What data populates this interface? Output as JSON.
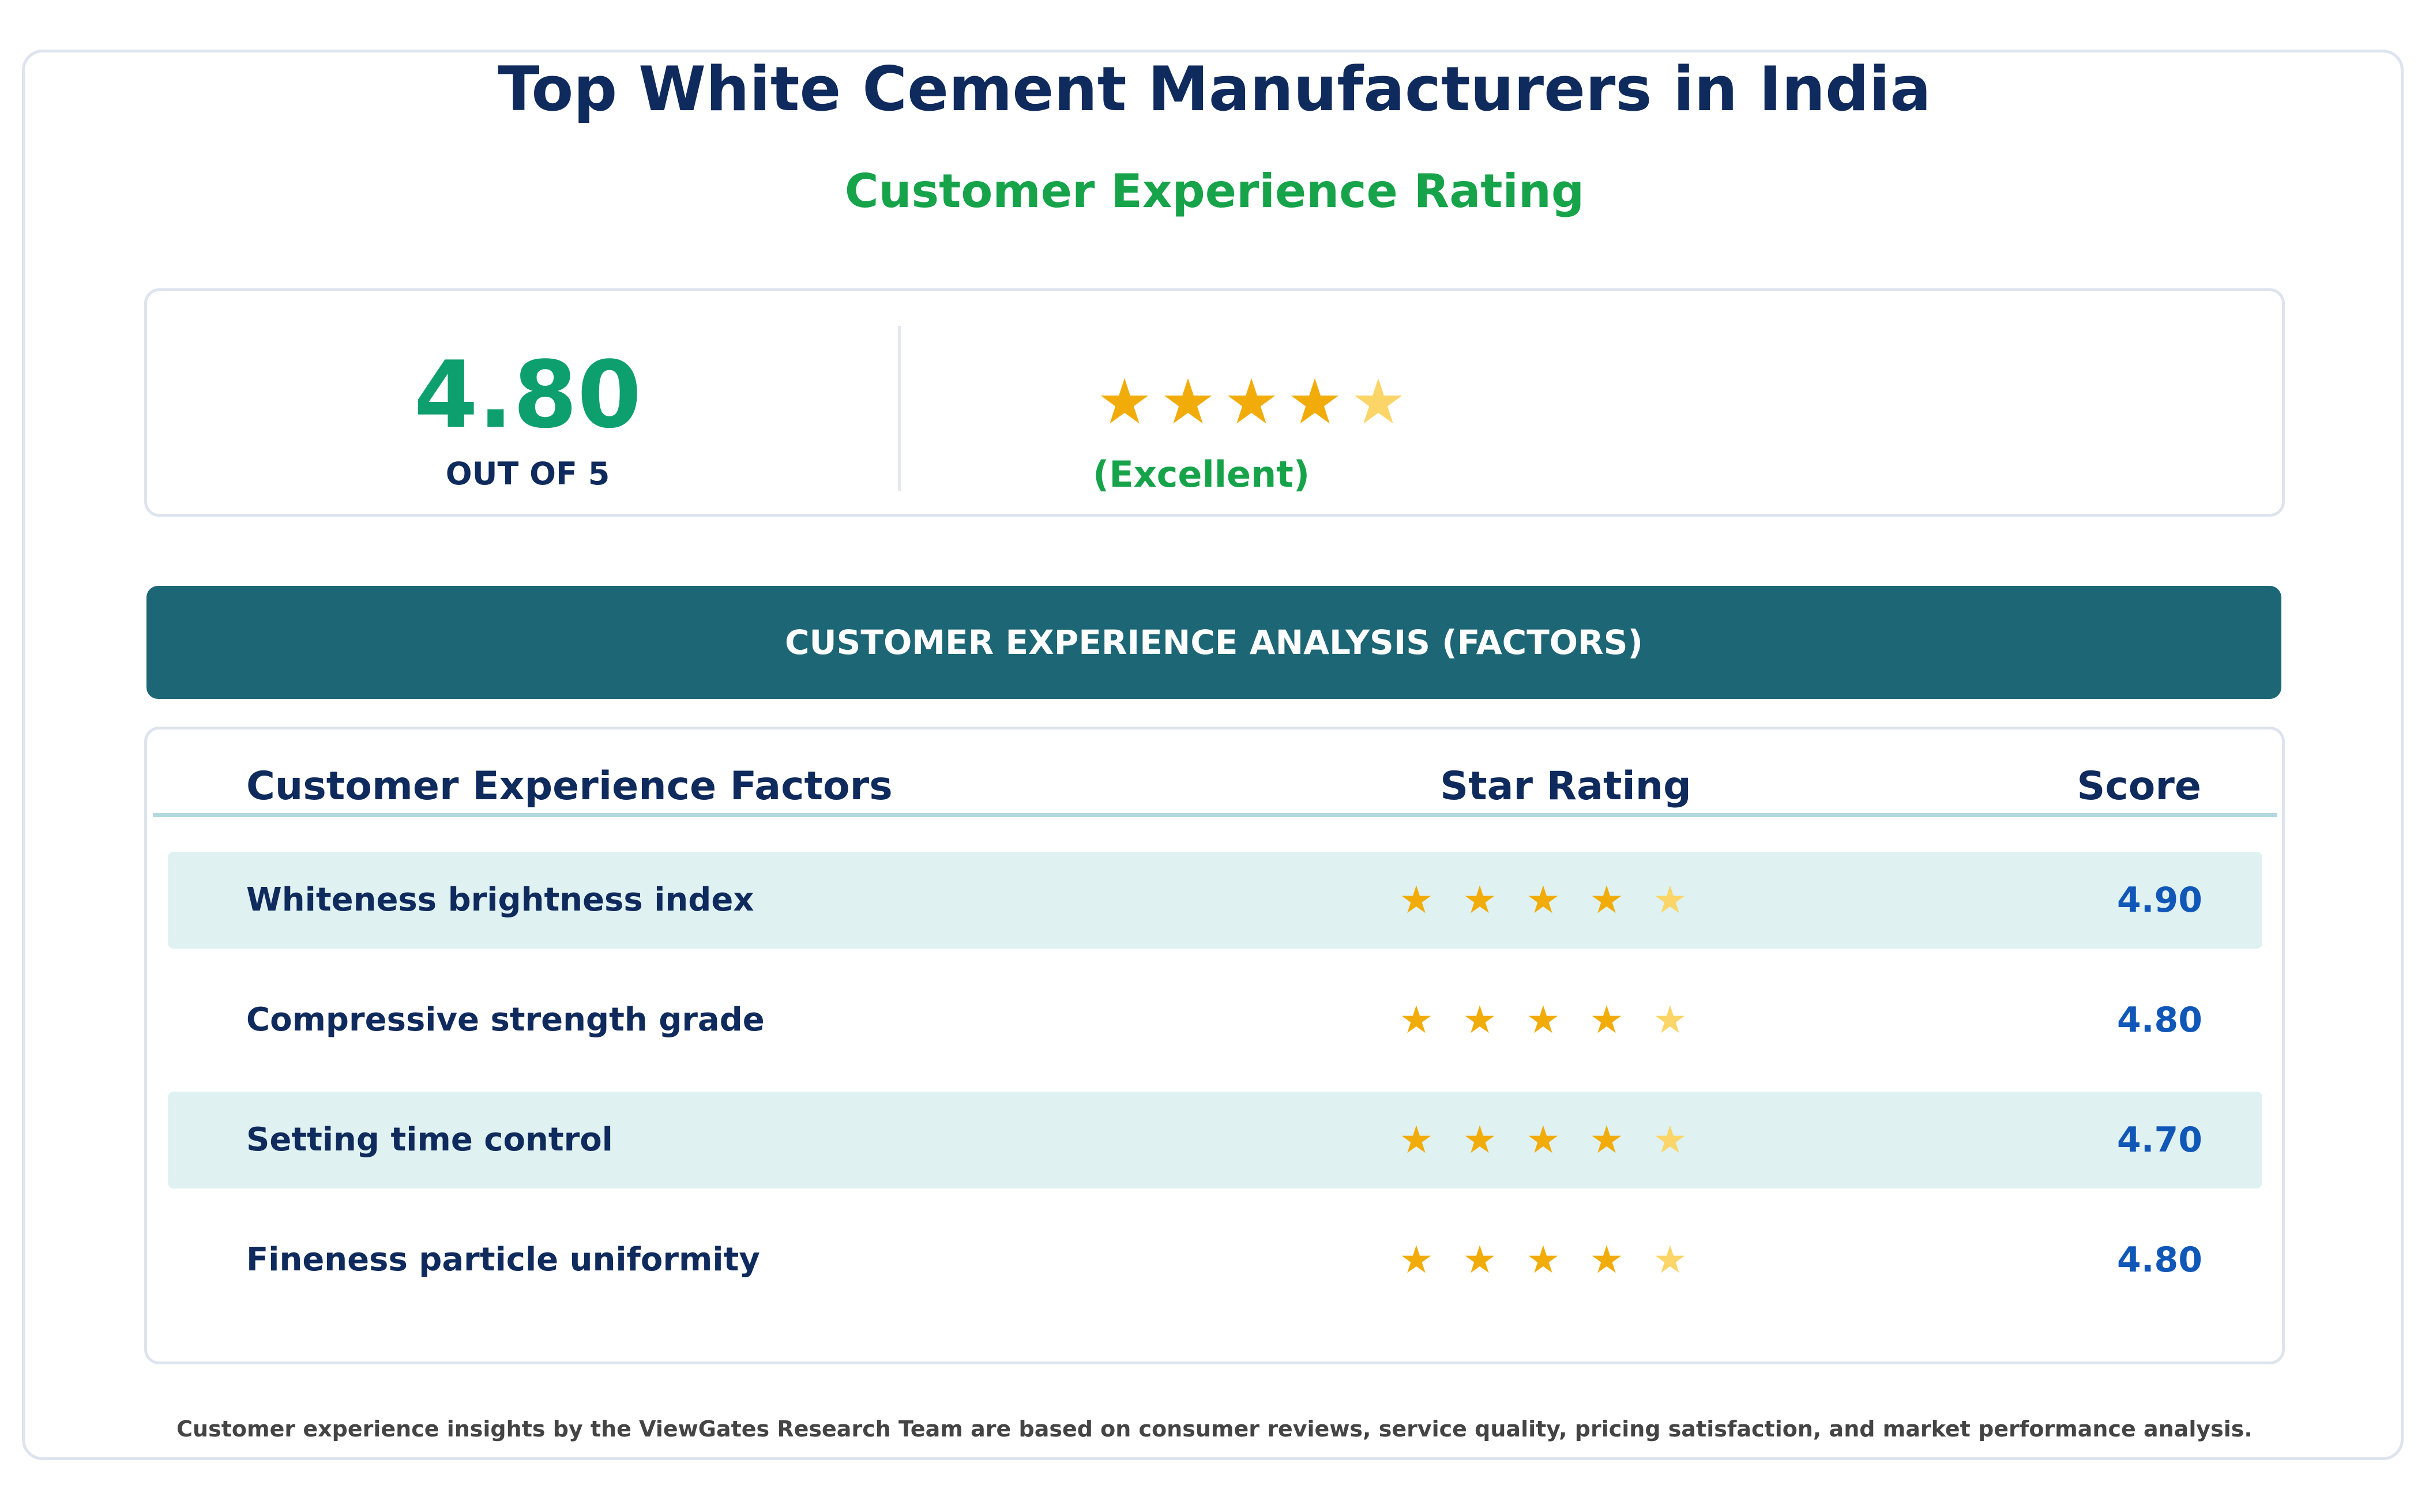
{
  "header": {
    "title": "Top White Cement Manufacturers in India",
    "subtitle": "Customer Experience Rating"
  },
  "summary": {
    "score": "4.80",
    "out_of": "OUT OF 5",
    "stars": 4.5,
    "star_icons": [
      "★",
      "★",
      "★",
      "★",
      "★"
    ],
    "label": "(Excellent)"
  },
  "banner": {
    "label": "CUSTOMER EXPERIENCE ANALYSIS (FACTORS)"
  },
  "table": {
    "columns": [
      "Customer Experience Factors",
      "Star Rating",
      "Score"
    ],
    "rows": [
      {
        "factor": "Whiteness brightness index",
        "stars": 4.5,
        "score": "4.90",
        "star_icons": [
          "★",
          "★",
          "★",
          "★",
          "★"
        ]
      },
      {
        "factor": "Compressive strength grade",
        "stars": 4.5,
        "score": "4.80",
        "star_icons": [
          "★",
          "★",
          "★",
          "★",
          "★"
        ]
      },
      {
        "factor": "Setting time control",
        "stars": 4.5,
        "score": "4.70",
        "star_icons": [
          "★",
          "★",
          "★",
          "★",
          "★"
        ]
      },
      {
        "factor": "Fineness particle uniformity",
        "stars": 4.5,
        "score": "4.80",
        "star_icons": [
          "★",
          "★",
          "★",
          "★",
          "★"
        ]
      }
    ]
  },
  "footer": {
    "note": "Customer experience insights by the ViewGates Research Team are based on consumer reviews, service quality, pricing satisfaction, and market performance analysis."
  },
  "colors": {
    "title": "#0f2a5c",
    "accent_green": "#16a34a",
    "score_green": "#0e9f6e",
    "banner_teal": "#1c6675",
    "row_shade": "#dff1f1",
    "star_gold": "#f2ac0a",
    "star_half": "#fbd567",
    "score_blue": "#1157b8"
  }
}
